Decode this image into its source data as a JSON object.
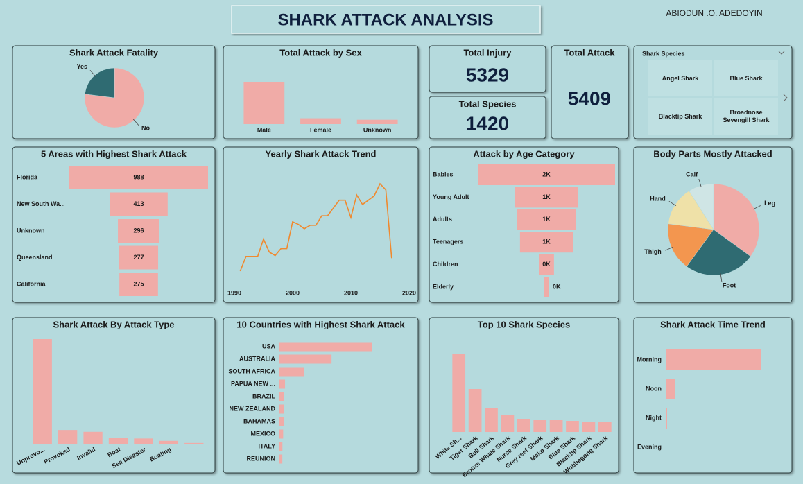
{
  "header": {
    "title": "SHARK ATTACK ANALYSIS",
    "author": "ABIODUN .O. ADEDOYIN"
  },
  "kpis": [
    {
      "label": "Total Injury",
      "value": 5329
    },
    {
      "label": "Total Species",
      "value": 1420
    },
    {
      "label": "Total Attack",
      "value": 5409
    }
  ],
  "slicer": {
    "title": "Shark Species",
    "items": [
      "Angel Shark",
      "Blue Shark",
      "Blacktip Shark",
      "Broadnose Sevengill Shark"
    ]
  },
  "chart_data": [
    {
      "type": "pie",
      "title": "Shark Attack Fatality",
      "categories": [
        "No",
        "Yes"
      ],
      "values": [
        77,
        23
      ],
      "colors": [
        "#f0aba7",
        "#2f6b72"
      ]
    },
    {
      "type": "bar",
      "title": "Total Attack by Sex",
      "categories": [
        "Male",
        "Female",
        "Unknown"
      ],
      "values": [
        4350,
        600,
        450
      ],
      "color": "#f0aba7"
    },
    {
      "type": "funnel",
      "title": "5 Areas with Highest Shark Attack",
      "categories": [
        "Florida",
        "New South Wa...",
        "Unknown",
        "Queensland",
        "California"
      ],
      "values": [
        988,
        413,
        296,
        277,
        275
      ],
      "color": "#f0aba7"
    },
    {
      "type": "line",
      "title": "Yearly Shark Attack Trend",
      "x": [
        1991,
        1992,
        1993,
        1994,
        1995,
        1996,
        1997,
        1998,
        1999,
        2000,
        2001,
        2002,
        2003,
        2004,
        2005,
        2006,
        2007,
        2008,
        2009,
        2010,
        2011,
        2012,
        2013,
        2014,
        2015,
        2016,
        2017
      ],
      "values": [
        40,
        57,
        57,
        57,
        77,
        62,
        58,
        66,
        66,
        97,
        94,
        89,
        93,
        93,
        104,
        104,
        113,
        122,
        122,
        102,
        128,
        117,
        122,
        127,
        141,
        134,
        55
      ],
      "color": "#f0892e",
      "xlim": [
        1990,
        2020
      ],
      "xticks": [
        1990,
        2000,
        2010,
        2020
      ]
    },
    {
      "type": "funnel",
      "title": "Attack by Age Category",
      "categories": [
        "Babies",
        "Young Adult",
        "Adults",
        "Teenagers",
        "Children",
        "Elderly"
      ],
      "values": [
        2000,
        920,
        860,
        770,
        220,
        80
      ],
      "value_labels": [
        "2K",
        "1K",
        "1K",
        "1K",
        "0K",
        "0K"
      ],
      "color": "#f0aba7"
    },
    {
      "type": "pie",
      "title": "Body Parts Mostly Attacked",
      "categories": [
        "Leg",
        "Foot",
        "Thigh",
        "Hand",
        "Calf"
      ],
      "values": [
        35,
        25,
        17,
        14,
        9
      ],
      "colors": [
        "#f0aba7",
        "#2f6b72",
        "#f3964f",
        "#efe1a8",
        "#cfe5e5"
      ]
    },
    {
      "type": "bar",
      "title": "Shark Attack By Attack Type",
      "categories": [
        "Unprovo...",
        "Provoked",
        "Invalid",
        "Boat",
        "Sea Disaster",
        "Boating",
        null
      ],
      "values": [
        3950,
        520,
        450,
        210,
        200,
        110,
        30
      ],
      "color": "#f0aba7"
    },
    {
      "type": "bar",
      "orientation": "horizontal",
      "title": "10 Countries with Highest Shark Attack",
      "categories": [
        "USA",
        "AUSTRALIA",
        "SOUTH AFRICA",
        "PAPUA NEW ...",
        "BRAZIL",
        "NEW ZEALAND",
        "BAHAMAS",
        "MEXICO",
        "ITALY",
        "REUNION"
      ],
      "values": [
        2230,
        1250,
        590,
        134,
        112,
        110,
        104,
        89,
        71,
        69
      ],
      "color": "#f0aba7"
    },
    {
      "type": "bar",
      "title": "Top 10 Shark Species",
      "categories": [
        "White Sh...",
        "Tiger Shark",
        "Bull Shark",
        "Bronze Whale Shark",
        "Nurse Shark",
        "Grey reef Shark",
        "Mako Shark",
        "Blue Shark",
        "Blacktip Shark",
        "Wobbegong Shark"
      ],
      "values": [
        560,
        310,
        175,
        120,
        95,
        90,
        90,
        80,
        70,
        70
      ],
      "color": "#f0aba7"
    },
    {
      "type": "bar",
      "orientation": "horizontal",
      "title": "Shark Attack Time Trend",
      "categories": [
        "Morning",
        "Noon",
        "Night",
        "Evening"
      ],
      "values": [
        1380,
        130,
        20,
        10
      ],
      "color": "#f0aba7"
    }
  ]
}
